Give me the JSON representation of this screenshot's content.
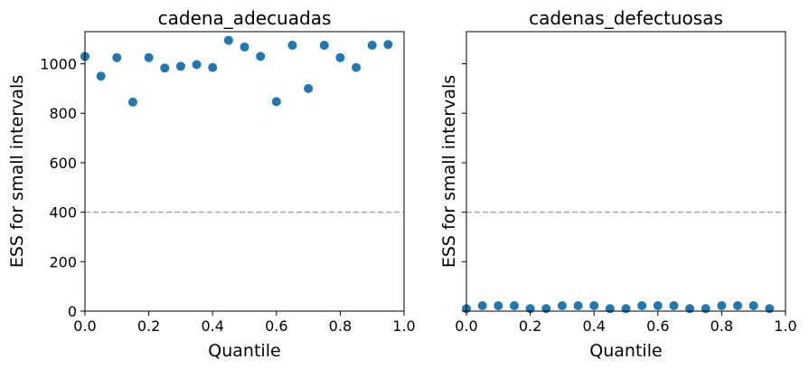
{
  "chart_data": [
    {
      "type": "scatter",
      "title": "cadena_adecuadas",
      "xlabel": "Quantile",
      "ylabel": "ESS for small intervals",
      "xlim": [
        0,
        1
      ],
      "ylim": [
        0,
        1130
      ],
      "xticks": [
        "0.0",
        "0.2",
        "0.4",
        "0.6",
        "0.8",
        "1.0"
      ],
      "yticks": [
        "0",
        "200",
        "400",
        "600",
        "800",
        "1000"
      ],
      "y_tick_labels_shown": true,
      "reference_line": {
        "y": 400,
        "style": "dashed",
        "color": "#a6a6a6"
      },
      "marker_color": "#1f77b4",
      "grid": false,
      "x": [
        0.0,
        0.05,
        0.1,
        0.15,
        0.2,
        0.25,
        0.3,
        0.35,
        0.4,
        0.45,
        0.5,
        0.55,
        0.6,
        0.65,
        0.7,
        0.75,
        0.8,
        0.85,
        0.9,
        0.95
      ],
      "y": [
        1030,
        950,
        1025,
        845,
        1025,
        983,
        990,
        997,
        985,
        1095,
        1068,
        1030,
        847,
        1075,
        900,
        1075,
        1025,
        985,
        1075,
        1078
      ]
    },
    {
      "type": "scatter",
      "title": "cadenas_defectuosas",
      "xlabel": "Quantile",
      "ylabel": "ESS for small intervals",
      "xlim": [
        0,
        1
      ],
      "ylim": [
        0,
        1130
      ],
      "xticks": [
        "0.0",
        "0.2",
        "0.4",
        "0.6",
        "0.8",
        "1.0"
      ],
      "yticks": [
        "",
        "",
        "",
        "",
        "",
        ""
      ],
      "y_tick_labels_shown": false,
      "reference_line": {
        "y": 400,
        "style": "dashed",
        "color": "#a6a6a6"
      },
      "marker_color": "#1f77b4",
      "grid": false,
      "x": [
        0.0,
        0.05,
        0.1,
        0.15,
        0.2,
        0.25,
        0.3,
        0.35,
        0.4,
        0.45,
        0.5,
        0.55,
        0.6,
        0.65,
        0.7,
        0.75,
        0.8,
        0.85,
        0.9,
        0.95
      ],
      "y": [
        10,
        22,
        22,
        22,
        10,
        10,
        22,
        22,
        22,
        10,
        10,
        22,
        22,
        22,
        10,
        10,
        22,
        22,
        22,
        10
      ]
    }
  ]
}
